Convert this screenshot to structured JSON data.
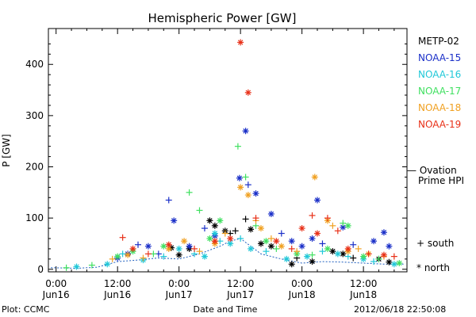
{
  "chart_data": {
    "type": "scatter",
    "title": "Hemispheric Power [GW]",
    "ylabel": "P [GW]",
    "xlabel": "Date and Time",
    "footer_left": "Plot: CCMC",
    "footer_right": "2012/06/18 22:50:08",
    "x_unit": "hours since 2012-06-16 00:00 UT",
    "xlim": [
      -1.5,
      68.5
    ],
    "ylim": [
      -5,
      470
    ],
    "grid": false,
    "y_ticks": [
      0,
      100,
      200,
      300,
      400
    ],
    "x_ticks": [
      {
        "x": 0,
        "line1": "0:00",
        "line2": "Jun16"
      },
      {
        "x": 12,
        "line1": "12:00",
        "line2": "Jun16"
      },
      {
        "x": 24,
        "line1": "0:00",
        "line2": "Jun17"
      },
      {
        "x": 36,
        "line1": "12:00",
        "line2": "Jun17"
      },
      {
        "x": 48,
        "line1": "0:00",
        "line2": "Jun18"
      },
      {
        "x": 60,
        "line1": "12:00",
        "line2": "Jun18"
      }
    ],
    "legend_position": "right",
    "legend_series": [
      {
        "name": "METP-02",
        "color": "#000000"
      },
      {
        "name": "NOAA-15",
        "color": "#1a2fc8"
      },
      {
        "name": "NOAA-16",
        "color": "#20c8d8"
      },
      {
        "name": "NOAA-17",
        "color": "#40e060"
      },
      {
        "name": "NOAA-18",
        "color": "#f0a020"
      },
      {
        "name": "NOAA-19",
        "color": "#e83018"
      }
    ],
    "ovation": {
      "label_line1": "— Ovation",
      "label_line2": "Prime HPI",
      "color": "#1f5fbf",
      "value": 200
    },
    "marker_key": [
      {
        "symbol": "+",
        "label": "south"
      },
      {
        "symbol": "*",
        "label": "north"
      }
    ],
    "series": [
      {
        "name": "METP-02",
        "color": "#000000",
        "points": [
          [
            22.5,
            42,
            "*"
          ],
          [
            24,
            28,
            "*"
          ],
          [
            26,
            40,
            "*"
          ],
          [
            30,
            95,
            "*"
          ],
          [
            31,
            85,
            "*"
          ],
          [
            33,
            75,
            "*"
          ],
          [
            34,
            70,
            "+"
          ],
          [
            35,
            75,
            "+"
          ],
          [
            37,
            98,
            "+"
          ],
          [
            38,
            78,
            "*"
          ],
          [
            40,
            50,
            "*"
          ],
          [
            42,
            45,
            "*"
          ],
          [
            46,
            10,
            "*"
          ],
          [
            47,
            22,
            "+"
          ],
          [
            50,
            15,
            "*"
          ],
          [
            54,
            35,
            "*"
          ],
          [
            56,
            30,
            "*"
          ],
          [
            58,
            22,
            "+"
          ],
          [
            63,
            20,
            "*"
          ],
          [
            65,
            14,
            "*"
          ]
        ]
      },
      {
        "name": "NOAA-15",
        "color": "#1a2fc8",
        "points": [
          [
            12,
            22,
            "*"
          ],
          [
            14,
            30,
            "*"
          ],
          [
            16,
            48,
            "+"
          ],
          [
            18,
            45,
            "*"
          ],
          [
            20,
            30,
            "+"
          ],
          [
            22,
            135,
            "+"
          ],
          [
            23,
            95,
            "*"
          ],
          [
            26,
            45,
            "*"
          ],
          [
            29,
            80,
            "+"
          ],
          [
            31,
            65,
            "*"
          ],
          [
            35.8,
            178,
            "*"
          ],
          [
            37,
            270,
            "*"
          ],
          [
            37.5,
            165,
            "+"
          ],
          [
            39,
            148,
            "*"
          ],
          [
            42,
            108,
            "*"
          ],
          [
            44,
            70,
            "+"
          ],
          [
            46,
            55,
            "*"
          ],
          [
            48,
            45,
            "*"
          ],
          [
            50,
            60,
            "*"
          ],
          [
            51,
            135,
            "*"
          ],
          [
            52,
            50,
            "+"
          ],
          [
            56,
            82,
            "*"
          ],
          [
            58,
            48,
            "+"
          ],
          [
            62,
            55,
            "*"
          ],
          [
            64,
            72,
            "*"
          ],
          [
            65,
            45,
            "*"
          ]
        ]
      },
      {
        "name": "NOAA-16",
        "color": "#20c8d8",
        "points": [
          [
            4,
            5,
            "*"
          ],
          [
            10,
            10,
            "*"
          ],
          [
            13,
            30,
            "+"
          ],
          [
            17,
            18,
            "*"
          ],
          [
            21,
            25,
            "+"
          ],
          [
            24,
            40,
            "*"
          ],
          [
            27,
            30,
            "+"
          ],
          [
            29,
            25,
            "*"
          ],
          [
            31,
            70,
            "*"
          ],
          [
            32,
            55,
            "+"
          ],
          [
            34,
            50,
            "*"
          ],
          [
            36,
            60,
            "+"
          ],
          [
            38,
            40,
            "*"
          ],
          [
            41,
            35,
            "+"
          ],
          [
            45,
            20,
            "*"
          ],
          [
            49,
            25,
            "*"
          ],
          [
            52,
            35,
            "+"
          ],
          [
            55,
            30,
            "*"
          ],
          [
            57,
            25,
            "+"
          ],
          [
            60,
            20,
            "*"
          ],
          [
            62,
            15,
            "+"
          ],
          [
            66,
            10,
            "*"
          ]
        ]
      },
      {
        "name": "NOAA-17",
        "color": "#40e060",
        "points": [
          [
            2,
            3,
            "+"
          ],
          [
            7,
            8,
            "+"
          ],
          [
            12,
            25,
            "*"
          ],
          [
            15,
            35,
            "*"
          ],
          [
            19,
            30,
            "+"
          ],
          [
            21,
            45,
            "*"
          ],
          [
            26,
            150,
            "+"
          ],
          [
            28,
            115,
            "+"
          ],
          [
            30,
            60,
            "*"
          ],
          [
            32,
            95,
            "*"
          ],
          [
            35.5,
            240,
            "+"
          ],
          [
            37,
            180,
            "+"
          ],
          [
            39,
            85,
            "+"
          ],
          [
            41,
            55,
            "*"
          ],
          [
            43,
            40,
            "+"
          ],
          [
            47,
            30,
            "*"
          ],
          [
            50,
            28,
            "+"
          ],
          [
            53,
            40,
            "*"
          ],
          [
            56,
            90,
            "+"
          ],
          [
            57,
            85,
            "*"
          ],
          [
            60,
            25,
            "*"
          ],
          [
            63,
            20,
            "+"
          ],
          [
            67,
            12,
            "*"
          ]
        ]
      },
      {
        "name": "NOAA-18",
        "color": "#f0a020",
        "points": [
          [
            11,
            20,
            "+"
          ],
          [
            14,
            28,
            "*"
          ],
          [
            17,
            22,
            "+"
          ],
          [
            22,
            40,
            "*"
          ],
          [
            25,
            55,
            "*"
          ],
          [
            28,
            35,
            "+"
          ],
          [
            31,
            50,
            "*"
          ],
          [
            33,
            70,
            "+"
          ],
          [
            36,
            160,
            "*"
          ],
          [
            37.5,
            145,
            "*"
          ],
          [
            39,
            95,
            "+"
          ],
          [
            40,
            80,
            "*"
          ],
          [
            42,
            60,
            "+"
          ],
          [
            44,
            45,
            "*"
          ],
          [
            47,
            35,
            "+"
          ],
          [
            50.5,
            180,
            "*"
          ],
          [
            53,
            95,
            "*"
          ],
          [
            54,
            85,
            "+"
          ],
          [
            57,
            35,
            "*"
          ],
          [
            59,
            40,
            "+"
          ],
          [
            61,
            30,
            "*"
          ],
          [
            64,
            25,
            "+"
          ]
        ]
      },
      {
        "name": "NOAA-19",
        "color": "#e83018",
        "points": [
          [
            13,
            62,
            "+"
          ],
          [
            15,
            40,
            "*"
          ],
          [
            18,
            30,
            "+"
          ],
          [
            22,
            48,
            "*"
          ],
          [
            27,
            40,
            "+"
          ],
          [
            31,
            55,
            "*"
          ],
          [
            34,
            60,
            "*"
          ],
          [
            36,
            443,
            "*"
          ],
          [
            37.5,
            345,
            "*"
          ],
          [
            39,
            100,
            "+"
          ],
          [
            43,
            55,
            "*"
          ],
          [
            46,
            40,
            "+"
          ],
          [
            48,
            80,
            "*"
          ],
          [
            50,
            105,
            "+"
          ],
          [
            51,
            70,
            "*"
          ],
          [
            53,
            100,
            "+"
          ],
          [
            55,
            75,
            "+"
          ],
          [
            57,
            40,
            "*"
          ],
          [
            61,
            30,
            "+"
          ],
          [
            64,
            28,
            "*"
          ],
          [
            66,
            25,
            "+"
          ]
        ]
      }
    ],
    "ovation_line": [
      [
        -1,
        3
      ],
      [
        4,
        2
      ],
      [
        8,
        4
      ],
      [
        12,
        15
      ],
      [
        16,
        18
      ],
      [
        20,
        22
      ],
      [
        24,
        20
      ],
      [
        28,
        30
      ],
      [
        32,
        45
      ],
      [
        34,
        55
      ],
      [
        36,
        60
      ],
      [
        38,
        45
      ],
      [
        40,
        30
      ],
      [
        44,
        20
      ],
      [
        48,
        12
      ],
      [
        52,
        15
      ],
      [
        56,
        14
      ],
      [
        60,
        12
      ],
      [
        64,
        10
      ],
      [
        68,
        10
      ]
    ]
  }
}
